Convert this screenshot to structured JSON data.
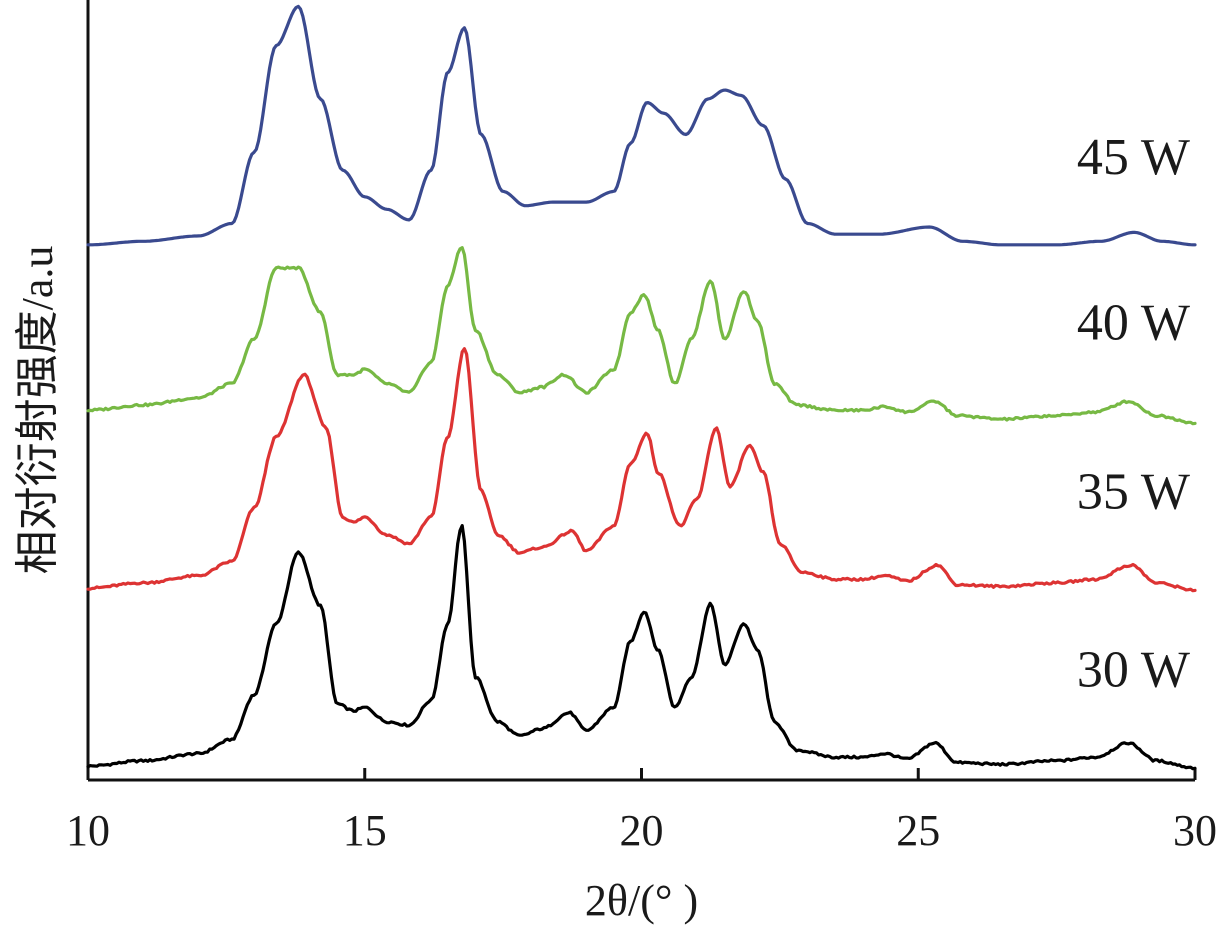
{
  "chart_data": {
    "type": "line",
    "title": "",
    "xlabel": "2θ/(° )",
    "ylabel": "相对衍射强度/a.u",
    "xlim": [
      10,
      30
    ],
    "ylim": [
      0,
      4.3
    ],
    "x_ticks": [
      10,
      15,
      20,
      25,
      30
    ],
    "x_tick_labels": [
      "10",
      "15",
      "20",
      "25",
      "30"
    ],
    "y_ticks": [],
    "grid": false,
    "legend": "none",
    "series": [
      {
        "name": "30 W",
        "color": "#000000",
        "x": [
          10,
          11,
          12,
          12.6,
          13.0,
          13.4,
          13.8,
          14.2,
          14.5,
          14.8,
          15.0,
          15.4,
          15.8,
          16.2,
          16.5,
          16.75,
          17.0,
          17.4,
          17.8,
          18.2,
          18.7,
          19.0,
          19.5,
          19.8,
          20.05,
          20.3,
          20.6,
          20.9,
          21.25,
          21.5,
          21.85,
          22.1,
          22.4,
          22.8,
          23.5,
          24.0,
          24.4,
          24.8,
          25.3,
          25.7,
          26.5,
          27.5,
          28.2,
          28.8,
          29.3,
          30
        ],
        "y": [
          0.05,
          0.08,
          0.12,
          0.2,
          0.45,
          0.85,
          1.25,
          0.95,
          0.4,
          0.36,
          0.38,
          0.3,
          0.28,
          0.42,
          0.85,
          1.4,
          0.55,
          0.3,
          0.22,
          0.26,
          0.35,
          0.25,
          0.38,
          0.75,
          0.92,
          0.7,
          0.38,
          0.55,
          0.96,
          0.62,
          0.85,
          0.7,
          0.3,
          0.14,
          0.1,
          0.1,
          0.12,
          0.09,
          0.18,
          0.07,
          0.06,
          0.08,
          0.1,
          0.18,
          0.08,
          0.04
        ]
      },
      {
        "name": "35 W",
        "color": "#dd3333",
        "x": [
          10,
          11,
          12,
          12.6,
          13.0,
          13.4,
          13.9,
          14.3,
          14.6,
          14.8,
          15.0,
          15.4,
          15.8,
          16.2,
          16.5,
          16.8,
          17.1,
          17.4,
          17.8,
          18.2,
          18.75,
          19.0,
          19.5,
          19.8,
          20.1,
          20.3,
          20.7,
          21.0,
          21.35,
          21.6,
          21.95,
          22.2,
          22.5,
          22.9,
          23.5,
          24.0,
          24.4,
          24.8,
          25.35,
          25.7,
          26.5,
          27.5,
          28.2,
          28.85,
          29.3,
          30
        ],
        "y": [
          1.05,
          1.08,
          1.12,
          1.2,
          1.5,
          1.9,
          2.25,
          1.95,
          1.45,
          1.42,
          1.45,
          1.35,
          1.3,
          1.45,
          1.9,
          2.4,
          1.6,
          1.35,
          1.25,
          1.28,
          1.37,
          1.26,
          1.4,
          1.75,
          1.92,
          1.7,
          1.4,
          1.55,
          1.95,
          1.62,
          1.85,
          1.7,
          1.3,
          1.14,
          1.1,
          1.1,
          1.12,
          1.09,
          1.18,
          1.07,
          1.06,
          1.08,
          1.1,
          1.18,
          1.08,
          1.04
        ]
      },
      {
        "name": "40 W",
        "color": "#77b944",
        "x": [
          10,
          11,
          12,
          12.6,
          13.0,
          13.4,
          13.8,
          14.2,
          14.5,
          14.8,
          15.0,
          15.4,
          15.8,
          16.2,
          16.5,
          16.75,
          17.0,
          17.4,
          17.8,
          18.2,
          18.6,
          19.0,
          19.5,
          19.8,
          20.05,
          20.3,
          20.6,
          20.9,
          21.25,
          21.5,
          21.85,
          22.1,
          22.4,
          22.8,
          23.5,
          24.0,
          24.4,
          24.8,
          25.3,
          25.7,
          26.5,
          27.5,
          28.2,
          28.8,
          29.3,
          30
        ],
        "y": [
          2.05,
          2.08,
          2.12,
          2.2,
          2.45,
          2.85,
          2.85,
          2.6,
          2.25,
          2.25,
          2.28,
          2.2,
          2.15,
          2.32,
          2.75,
          2.97,
          2.5,
          2.25,
          2.15,
          2.18,
          2.25,
          2.15,
          2.28,
          2.6,
          2.7,
          2.5,
          2.2,
          2.45,
          2.78,
          2.45,
          2.72,
          2.55,
          2.2,
          2.08,
          2.05,
          2.05,
          2.07,
          2.04,
          2.1,
          2.02,
          2.0,
          2.02,
          2.04,
          2.1,
          2.02,
          1.98
        ]
      },
      {
        "name": "45 W",
        "color": "#3a4a8f",
        "x": [
          10,
          11,
          12,
          12.6,
          13.0,
          13.4,
          13.8,
          14.2,
          14.6,
          15.0,
          15.4,
          15.8,
          16.2,
          16.5,
          16.8,
          17.1,
          17.5,
          17.9,
          18.4,
          19.0,
          19.5,
          19.8,
          20.1,
          20.4,
          20.8,
          21.2,
          21.5,
          21.8,
          22.2,
          22.6,
          23.0,
          23.5,
          24.3,
          25.2,
          25.8,
          26.5,
          27.5,
          28.3,
          28.9,
          29.4,
          30
        ],
        "y": [
          2.98,
          3.0,
          3.03,
          3.1,
          3.5,
          4.1,
          4.32,
          3.8,
          3.4,
          3.25,
          3.18,
          3.12,
          3.4,
          3.95,
          4.2,
          3.6,
          3.28,
          3.2,
          3.22,
          3.22,
          3.28,
          3.55,
          3.78,
          3.72,
          3.6,
          3.8,
          3.85,
          3.82,
          3.65,
          3.35,
          3.1,
          3.04,
          3.04,
          3.08,
          3.0,
          2.98,
          2.98,
          3.0,
          3.05,
          3.0,
          2.98
        ]
      }
    ],
    "series_labels": [
      "30 W",
      "35 W",
      "40 W",
      "45 W"
    ]
  }
}
